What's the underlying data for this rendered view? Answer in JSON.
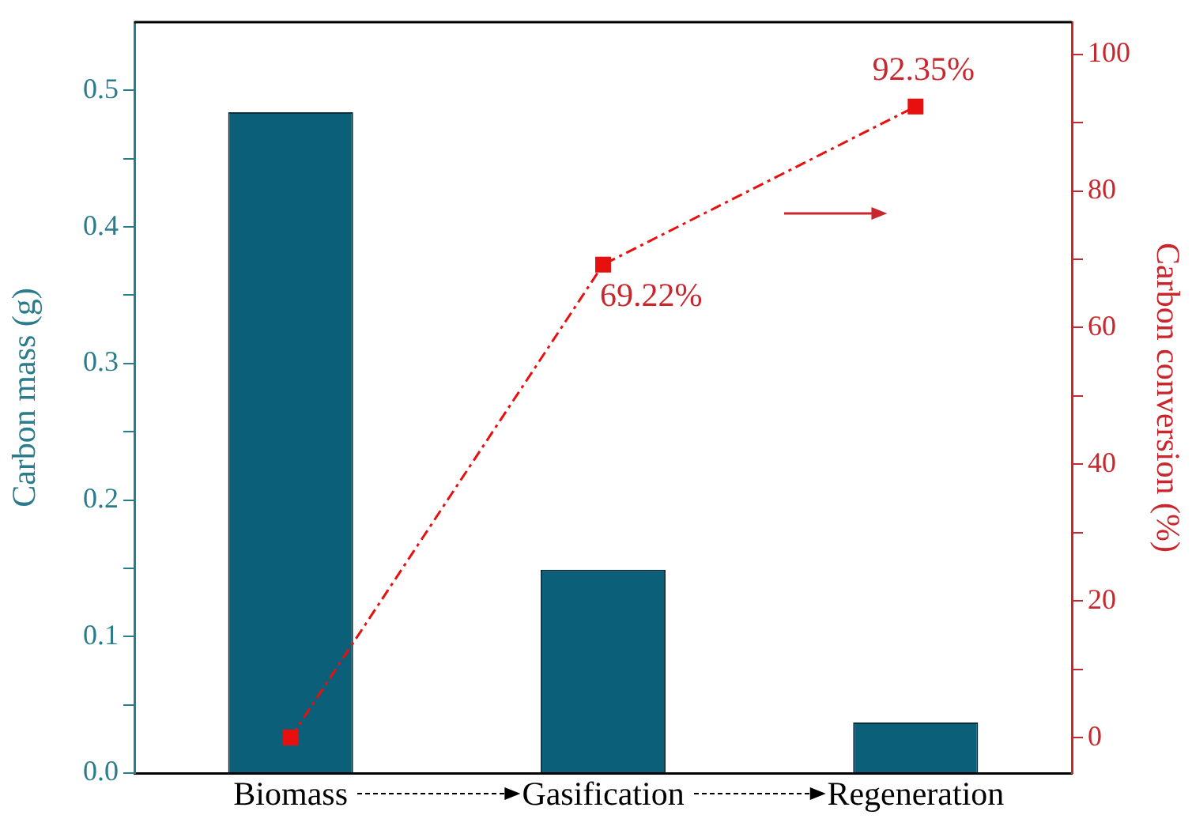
{
  "chart_data": {
    "type": "bar",
    "categories": [
      "Biomass",
      "Gasification",
      "Regeneration"
    ],
    "ylabel": "Carbon mass (g)",
    "y2label": "Carbon conversion (%)",
    "series": [
      {
        "color": "#0b5f78",
        "values": [
          0.484,
          0.149,
          0.037
        ]
      },
      {
        "type": "line",
        "axis": "y2",
        "color": "#e8100f",
        "values": [
          0,
          69.22,
          92.35
        ],
        "value_labels": [
          null,
          "69.22%",
          "92.35%"
        ]
      }
    ],
    "marker": "square",
    "line_style": "dashed",
    "ylim": [
      0,
      0.55
    ],
    "yticks": [
      {
        "value": 0,
        "label": "0.0"
      },
      {
        "value": 0.05,
        "label": null
      },
      {
        "value": 0.1,
        "label": "0.1"
      },
      {
        "value": 0.15,
        "label": null
      },
      {
        "value": 0.2,
        "label": "0.2"
      },
      {
        "value": 0.25,
        "label": null
      },
      {
        "value": 0.3,
        "label": "0.3"
      },
      {
        "value": 0.35,
        "label": null
      },
      {
        "value": 0.4,
        "label": "0.4"
      },
      {
        "value": 0.45,
        "label": null
      },
      {
        "value": 0.5,
        "label": "0.5"
      }
    ],
    "y2lim": [
      -5.2,
      104.7
    ],
    "y2ticks": [
      0,
      {
        "value": 10,
        "label": null
      },
      20,
      {
        "value": 30,
        "label": null
      },
      40,
      {
        "value": 50,
        "label": null
      },
      60,
      {
        "value": 70,
        "label": null
      },
      80,
      {
        "value": 90,
        "label": null
      },
      100
    ]
  }
}
